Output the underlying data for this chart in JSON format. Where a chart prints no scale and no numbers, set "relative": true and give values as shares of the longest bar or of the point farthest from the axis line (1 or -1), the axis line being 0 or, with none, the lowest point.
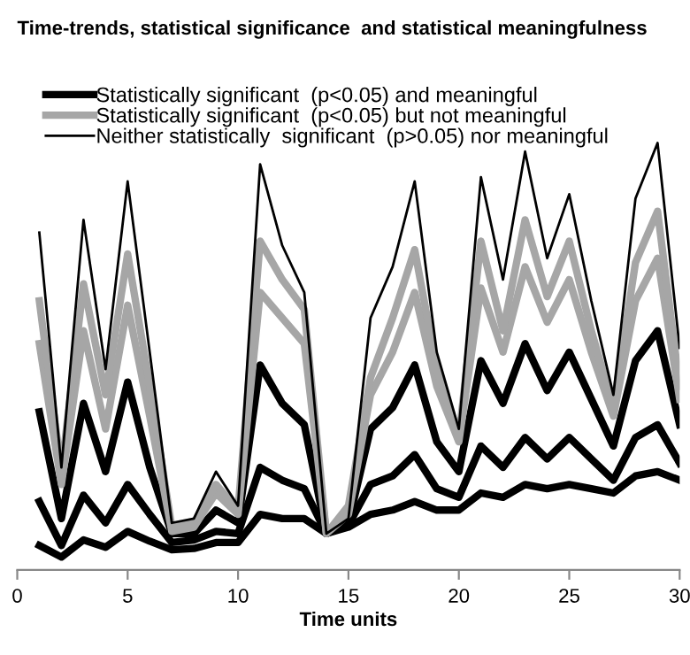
{
  "chart_data": {
    "type": "line",
    "title": "Time-trends, statistical significance  and statistical meaningfulness",
    "xlabel": "Time units",
    "x": [
      1,
      2,
      3,
      4,
      5,
      6,
      7,
      8,
      9,
      10,
      11,
      12,
      13,
      14,
      15,
      16,
      17,
      18,
      19,
      20,
      21,
      22,
      23,
      24,
      25,
      26,
      27,
      28,
      29,
      30
    ],
    "xlim": [
      0,
      30
    ],
    "xticks": [
      0,
      5,
      10,
      15,
      20,
      25,
      30
    ],
    "relative": true,
    "legend": "top left",
    "grid": false,
    "marker": "none",
    "line_style": "solid",
    "series": [
      {
        "name": "Statistically significant  (p<0.05) and meaningful",
        "color": "#000000",
        "values": [
          0.057,
          0.03,
          0.07,
          0.053,
          0.09,
          0.067,
          0.047,
          0.05,
          0.064,
          0.064,
          0.13,
          0.12,
          0.12,
          0.085,
          0.1,
          0.13,
          0.14,
          0.16,
          0.14,
          0.14,
          0.18,
          0.17,
          0.2,
          0.19,
          0.2,
          0.19,
          0.18,
          0.22,
          0.23,
          0.21
        ]
      },
      {
        "color": "#000000",
        "values": [
          0.16,
          0.057,
          0.175,
          0.11,
          0.2,
          0.13,
          0.064,
          0.07,
          0.09,
          0.085,
          0.24,
          0.21,
          0.19,
          0.085,
          0.105,
          0.2,
          0.22,
          0.27,
          0.19,
          0.17,
          0.29,
          0.24,
          0.31,
          0.26,
          0.31,
          0.26,
          0.21,
          0.31,
          0.34,
          0.25
        ]
      },
      {
        "color": "#000000",
        "values": [
          0.37,
          0.12,
          0.39,
          0.23,
          0.44,
          0.24,
          0.085,
          0.085,
          0.14,
          0.11,
          0.48,
          0.39,
          0.34,
          0.085,
          0.11,
          0.33,
          0.38,
          0.48,
          0.3,
          0.23,
          0.49,
          0.39,
          0.53,
          0.42,
          0.51,
          0.4,
          0.29,
          0.49,
          0.56,
          0.34
        ]
      },
      {
        "name": "Statistically significant  (p<0.05) but not meaningful",
        "color": "#a6a6a6",
        "values": [
          0.53,
          0.2,
          0.56,
          0.33,
          0.62,
          0.36,
          0.09,
          0.1,
          0.18,
          0.13,
          0.65,
          0.59,
          0.53,
          0.085,
          0.13,
          0.41,
          0.51,
          0.65,
          0.43,
          0.3,
          0.66,
          0.51,
          0.71,
          0.58,
          0.68,
          0.51,
          0.36,
          0.63,
          0.73,
          0.4
        ]
      },
      {
        "color": "#a6a6a6",
        "values": [
          0.63,
          0.23,
          0.67,
          0.41,
          0.74,
          0.43,
          0.1,
          0.11,
          0.2,
          0.14,
          0.77,
          0.68,
          0.61,
          0.085,
          0.15,
          0.45,
          0.59,
          0.75,
          0.47,
          0.31,
          0.77,
          0.56,
          0.82,
          0.64,
          0.77,
          0.56,
          0.38,
          0.72,
          0.84,
          0.43
        ]
      },
      {
        "name": "Neither statistically  significant  (p>0.05) nor meaningful",
        "color": "#000000",
        "values": [
          0.79,
          0.24,
          0.82,
          0.47,
          0.91,
          0.51,
          0.11,
          0.12,
          0.23,
          0.15,
          0.95,
          0.76,
          0.65,
          0.085,
          0.12,
          0.59,
          0.71,
          0.91,
          0.51,
          0.33,
          0.92,
          0.68,
          0.98,
          0.73,
          0.88,
          0.63,
          0.41,
          0.87,
          1.0,
          0.52
        ]
      }
    ]
  }
}
